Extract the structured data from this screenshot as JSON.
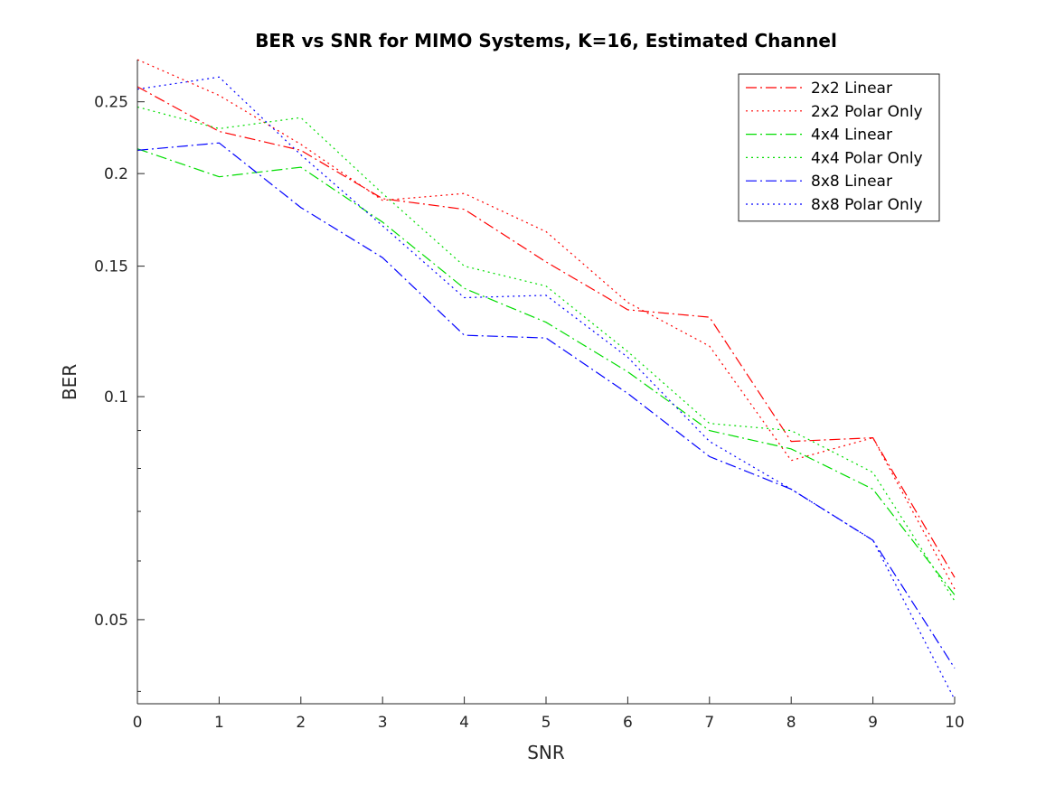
{
  "chart_data": {
    "type": "line",
    "title": "BER vs SNR for MIMO Systems, K=16, Estimated Channel",
    "xlabel": "SNR",
    "ylabel": "BER",
    "xlim": [
      0,
      10
    ],
    "ylim": [
      0.0385,
      0.285
    ],
    "yscale": "log",
    "grid": false,
    "legend_position": "top-right",
    "x": [
      0,
      1,
      2,
      3,
      4,
      5,
      6,
      7,
      8,
      9,
      10
    ],
    "xticks": [
      "0",
      "1",
      "2",
      "3",
      "4",
      "5",
      "6",
      "7",
      "8",
      "9",
      "10"
    ],
    "yticks": [
      {
        "value": 0.05,
        "label": "0.05"
      },
      {
        "value": 0.1,
        "label": "0.1"
      },
      {
        "value": 0.15,
        "label": "0.15"
      },
      {
        "value": 0.2,
        "label": "0.2"
      },
      {
        "value": 0.25,
        "label": "0.25"
      }
    ],
    "minor_yticks": [
      0.04,
      0.06,
      0.07,
      0.08,
      0.09
    ],
    "series": [
      {
        "name": "2x2 Linear",
        "color": "#ff0000",
        "dash": "dashdot",
        "values": [
          0.262,
          0.228,
          0.215,
          0.185,
          0.179,
          0.152,
          0.131,
          0.128,
          0.087,
          0.088,
          0.057
        ]
      },
      {
        "name": "2x2 Polar Only",
        "color": "#ff0000",
        "dash": "dotted",
        "values": [
          0.285,
          0.255,
          0.219,
          0.184,
          0.188,
          0.167,
          0.134,
          0.117,
          0.082,
          0.088,
          0.055
        ]
      },
      {
        "name": "4x4 Linear",
        "color": "#00dd00",
        "dash": "dashdot",
        "values": [
          0.216,
          0.198,
          0.204,
          0.172,
          0.14,
          0.126,
          0.108,
          0.09,
          0.085,
          0.075,
          0.054
        ]
      },
      {
        "name": "4x4 Polar Only",
        "color": "#00dd00",
        "dash": "dotted",
        "values": [
          0.246,
          0.23,
          0.238,
          0.188,
          0.15,
          0.141,
          0.115,
          0.092,
          0.09,
          0.079,
          0.053
        ]
      },
      {
        "name": "8x8 Linear",
        "color": "#0000ff",
        "dash": "dashdot",
        "values": [
          0.215,
          0.22,
          0.18,
          0.154,
          0.121,
          0.12,
          0.101,
          0.083,
          0.075,
          0.064,
          0.043
        ]
      },
      {
        "name": "8x8 Polar Only",
        "color": "#0000ff",
        "dash": "dotted",
        "values": [
          0.26,
          0.27,
          0.212,
          0.17,
          0.136,
          0.137,
          0.113,
          0.087,
          0.075,
          0.064,
          0.039
        ]
      }
    ]
  }
}
